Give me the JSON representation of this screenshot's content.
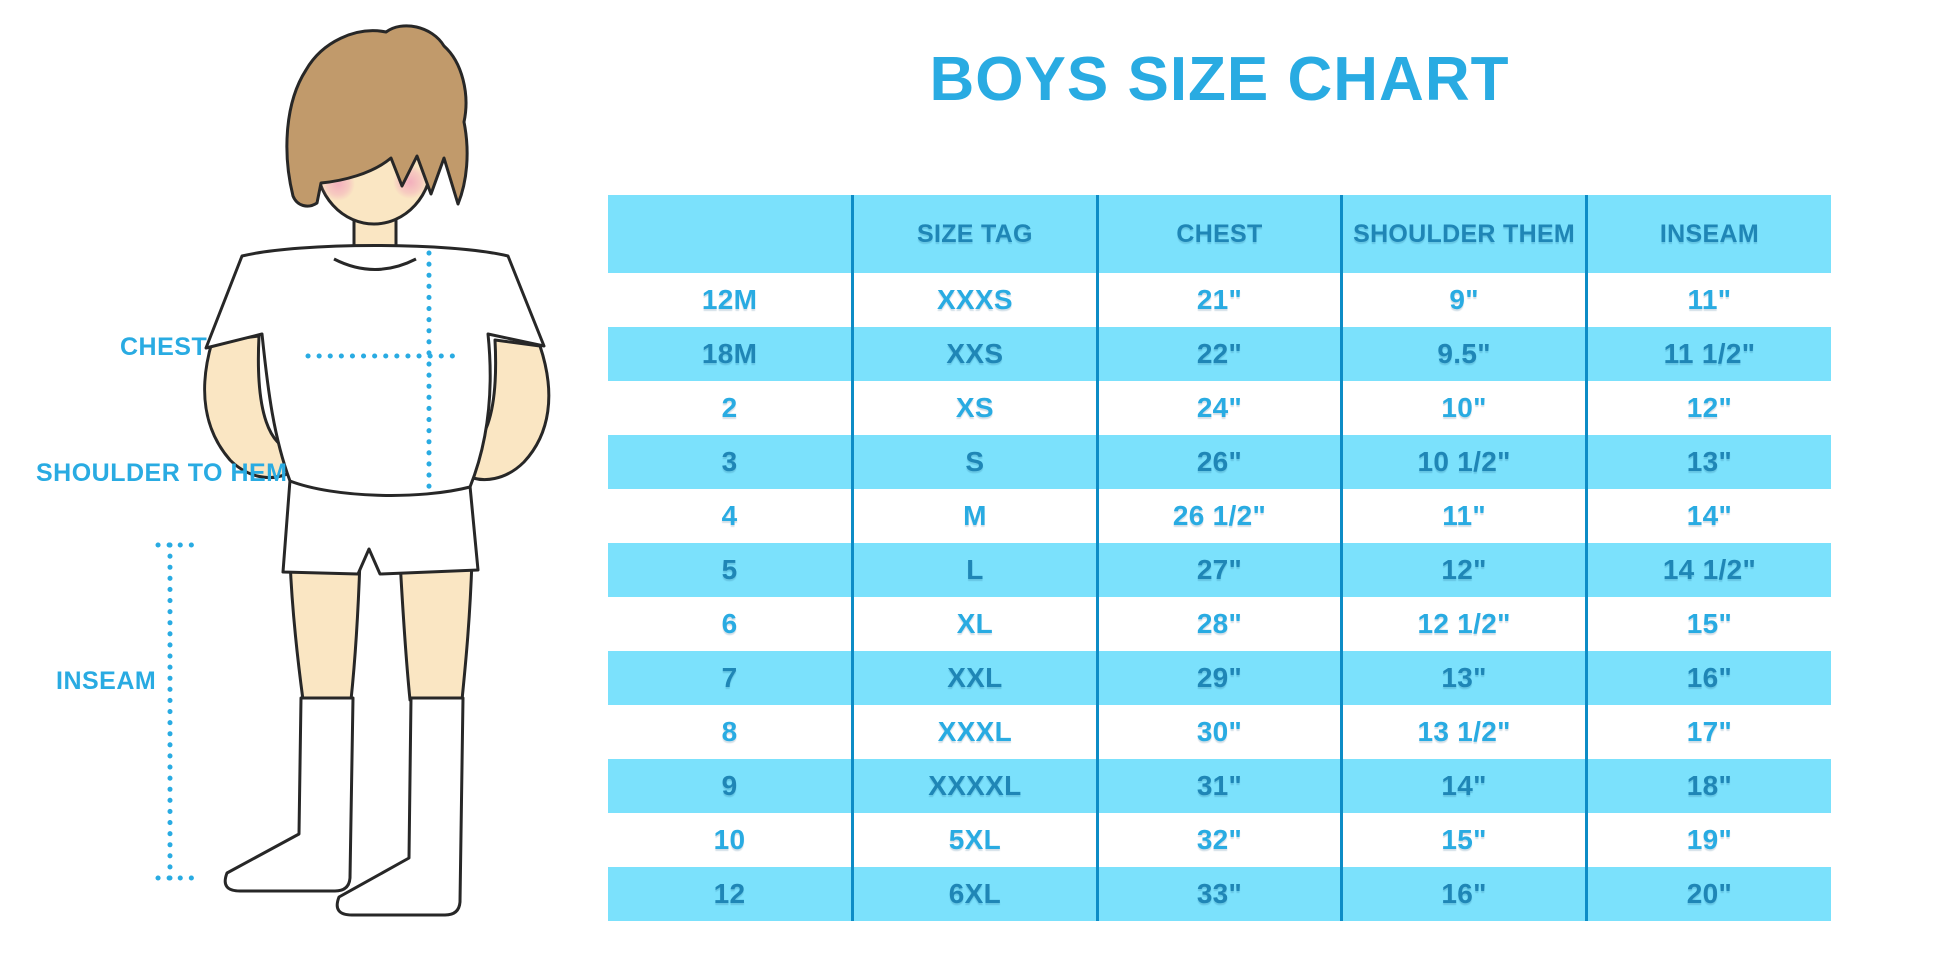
{
  "title": "BOYS SIZE CHART",
  "colors": {
    "accent": "#29ABE2",
    "stripe": "#7BE1FC",
    "dark_text": "#1F86B6",
    "divider": "#0D8CC6",
    "skin": "#FAE6C3",
    "hair": "#C19A6B",
    "outline": "#272727",
    "cheek": "#F2A9BC"
  },
  "diagram": {
    "chest_label": "CHEST",
    "shoulder_to_hem_label": "SHOULDER TO HEM",
    "inseam_label": "INSEAM"
  },
  "chart_data": {
    "type": "table",
    "title": "BOYS SIZE CHART",
    "columns": [
      "",
      "SIZE TAG",
      "CHEST",
      "SHOULDER THEM",
      "INSEAM"
    ],
    "rows": [
      [
        "12M",
        "XXXS",
        "21\"",
        "9\"",
        "11\""
      ],
      [
        "18M",
        "XXS",
        "22\"",
        "9.5\"",
        "11 1/2\""
      ],
      [
        "2",
        "XS",
        "24\"",
        "10\"",
        "12\""
      ],
      [
        "3",
        "S",
        "26\"",
        "10 1/2\"",
        "13\""
      ],
      [
        "4",
        "M",
        "26 1/2\"",
        "11\"",
        "14\""
      ],
      [
        "5",
        "L",
        "27\"",
        "12\"",
        "14 1/2\""
      ],
      [
        "6",
        "XL",
        "28\"",
        "12 1/2\"",
        "15\""
      ],
      [
        "7",
        "XXL",
        "29\"",
        "13\"",
        "16\""
      ],
      [
        "8",
        "XXXL",
        "30\"",
        "13 1/2\"",
        "17\""
      ],
      [
        "9",
        "XXXXL",
        "31\"",
        "14\"",
        "18\""
      ],
      [
        "10",
        "5XL",
        "32\"",
        "15\"",
        "19\""
      ],
      [
        "12",
        "6XL",
        "33\"",
        "16\"",
        "20\""
      ]
    ],
    "row_striping": "alternating white / light-blue starting with white",
    "grid": "vertical dividers only, no horizontal lines"
  }
}
